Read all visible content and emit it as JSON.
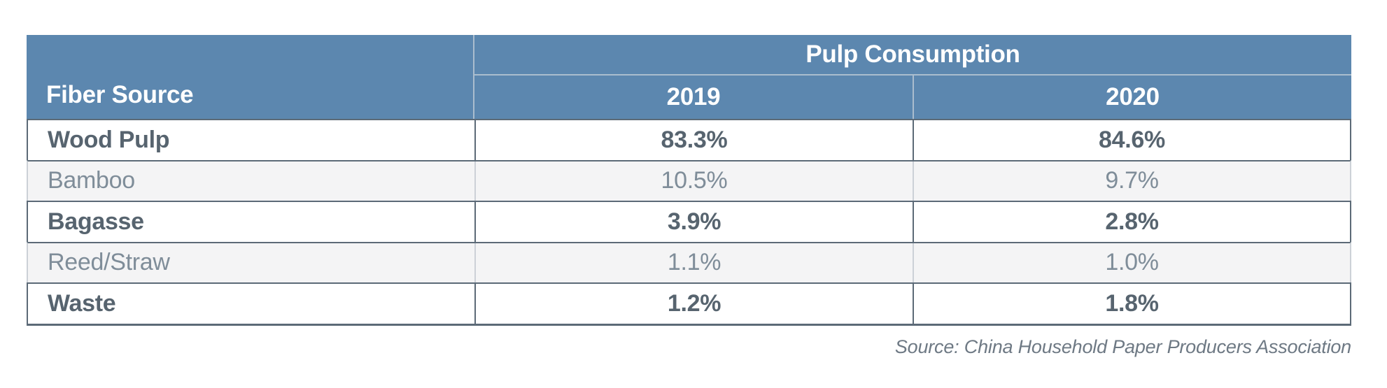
{
  "colors": {
    "header-blue": "#5c87af",
    "header-divider": "#aabdce",
    "dark-border": "#5c6a77",
    "light-border": "#ccd1d7",
    "dark-text": "#57646f",
    "light-text": "#7f8d99",
    "light-row-bg": "#f4f4f5",
    "source-text": "#6e7984",
    "page-bg": "#ffffff"
  },
  "table": {
    "corner_header": "Fiber Source",
    "group_header": "Pulp Consumption",
    "col_headers": [
      "2019",
      "2020"
    ],
    "rows": [
      {
        "label": "Wood Pulp",
        "values": [
          "83.3%",
          "84.6%"
        ]
      },
      {
        "label": "Bamboo",
        "values": [
          "10.5%",
          "9.7%"
        ]
      },
      {
        "label": "Bagasse",
        "values": [
          "3.9%",
          "2.8%"
        ]
      },
      {
        "label": "Reed/Straw",
        "values": [
          "1.1%",
          "1.0%"
        ]
      },
      {
        "label": "Waste",
        "values": [
          "1.2%",
          "1.8%"
        ]
      }
    ]
  },
  "source_note": "Source: China Household Paper Producers Association",
  "chart_data": {
    "type": "table",
    "title": "Pulp Consumption",
    "row_header": "Fiber Source",
    "categories": [
      "Wood Pulp",
      "Bamboo",
      "Bagasse",
      "Reed/Straw",
      "Waste"
    ],
    "series": [
      {
        "name": "2019",
        "unit": "%",
        "values": [
          83.3,
          10.5,
          3.9,
          1.1,
          1.2
        ]
      },
      {
        "name": "2020",
        "unit": "%",
        "values": [
          84.6,
          9.7,
          2.8,
          1.0,
          1.8
        ]
      }
    ],
    "source": "Source: China Household Paper Producers Association"
  }
}
